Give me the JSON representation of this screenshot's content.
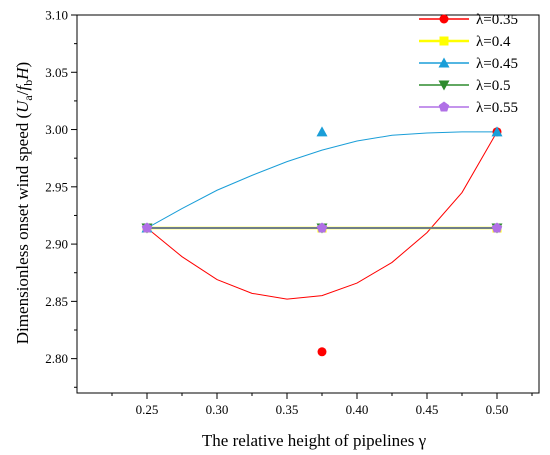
{
  "chart_data": {
    "type": "scatter",
    "xlabel": "The relative height of pipelines γ",
    "ylabel": "Dimensionless onset wind speed (U_a/f_b H)",
    "ylabel_parts": {
      "prefix": "Dimensionless onset wind speed (",
      "U": "U",
      "a": "a",
      "slash": "/",
      "f": "f",
      "b": "b",
      "H": "H",
      "suffix": ")"
    },
    "x_ticks": [
      "0.25",
      "0.30",
      "0.35",
      "0.40",
      "0.45",
      "0.50"
    ],
    "y_ticks": [
      "2.80",
      "2.85",
      "2.90",
      "2.95",
      "3.00",
      "3.05",
      "3.10"
    ],
    "xlim": [
      0.2,
      0.53
    ],
    "ylim": [
      2.77,
      3.1
    ],
    "grid": false,
    "legend_position": "top-right",
    "series": [
      {
        "name": "λ=0.35",
        "color": "#ff0000",
        "marker": "circle",
        "x": [
          0.25,
          0.375,
          0.5
        ],
        "y": [
          2.914,
          2.806,
          2.998
        ],
        "curve": {
          "x": [
            0.25,
            0.275,
            0.3,
            0.325,
            0.35,
            0.375,
            0.4,
            0.425,
            0.45,
            0.475,
            0.5
          ],
          "y": [
            2.914,
            2.889,
            2.869,
            2.857,
            2.852,
            2.855,
            2.866,
            2.884,
            2.91,
            2.945,
            2.998
          ]
        }
      },
      {
        "name": "λ=0.4",
        "color": "#ffff00",
        "marker": "square",
        "x": [
          0.25,
          0.375,
          0.5
        ],
        "y": [
          2.914,
          2.914,
          2.914
        ],
        "curve": {
          "x": [
            0.25,
            0.5
          ],
          "y": [
            2.914,
            2.914
          ]
        }
      },
      {
        "name": "λ=0.45",
        "color": "#1a9ed8",
        "marker": "triangle-up",
        "x": [
          0.25,
          0.375,
          0.5
        ],
        "y": [
          2.914,
          2.998,
          2.998
        ],
        "curve": {
          "x": [
            0.25,
            0.275,
            0.3,
            0.325,
            0.35,
            0.375,
            0.4,
            0.425,
            0.45,
            0.475,
            0.5
          ],
          "y": [
            2.914,
            2.931,
            2.947,
            2.96,
            2.972,
            2.982,
            2.99,
            2.995,
            2.997,
            2.998,
            2.998
          ]
        }
      },
      {
        "name": "λ=0.5",
        "color": "#2e8b2e",
        "marker": "triangle-down",
        "x": [
          0.25,
          0.375,
          0.5
        ],
        "y": [
          2.914,
          2.914,
          2.914
        ],
        "curve": {
          "x": [
            0.25,
            0.5
          ],
          "y": [
            2.914,
            2.914
          ]
        }
      },
      {
        "name": "λ=0.55",
        "color": "#b070e6",
        "marker": "pentagon",
        "x": [
          0.25,
          0.375,
          0.5
        ],
        "y": [
          2.914,
          2.914,
          2.914
        ],
        "curve": {
          "x": [
            0.25,
            0.5
          ],
          "y": [
            2.914,
            2.914
          ]
        }
      }
    ]
  }
}
